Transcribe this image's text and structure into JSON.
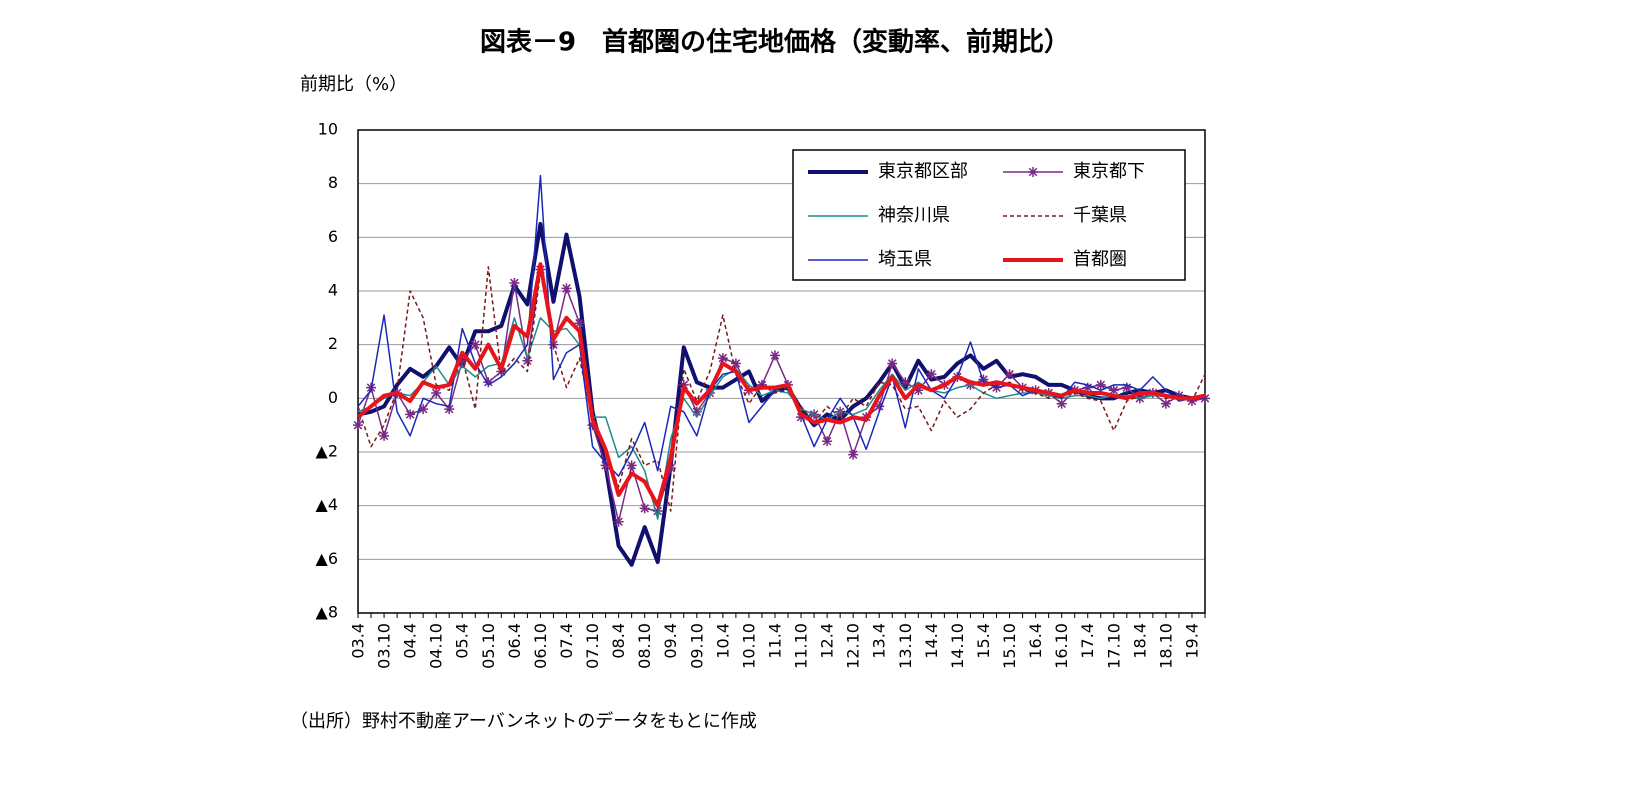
{
  "chart_data": {
    "type": "line",
    "title": "図表－9　首都圏の住宅地価格（変動率、前期比）",
    "y_label": "前期比（%）",
    "source": "（出所）野村不動産アーバンネットのデータをもとに作成",
    "categories": [
      "03.4",
      null,
      "03.10",
      null,
      "04.4",
      null,
      "04.10",
      null,
      "05.4",
      null,
      "05.10",
      null,
      "06.4",
      null,
      "06.10",
      null,
      "07.4",
      null,
      "07.10",
      null,
      "08.4",
      null,
      "08.10",
      null,
      "09.4",
      null,
      "09.10",
      null,
      "10.4",
      null,
      "10.10",
      null,
      "11.4",
      null,
      "11.10",
      null,
      "12.4",
      null,
      "12.10",
      null,
      "13.4",
      null,
      "13.10",
      null,
      "14.4",
      null,
      "14.10",
      null,
      "15.4",
      null,
      "15.10",
      null,
      "16.4",
      null,
      "16.10",
      null,
      "17.4",
      null,
      "17.10",
      null,
      "18.4",
      null,
      "18.10",
      null,
      "19.4",
      null
    ],
    "ylim": [
      -8,
      10
    ],
    "yticks": [
      {
        "value": -8,
        "label": "▲8"
      },
      {
        "value": -6,
        "label": "▲6"
      },
      {
        "value": -4,
        "label": "▲4"
      },
      {
        "value": -2,
        "label": "▲2"
      },
      0,
      2,
      4,
      6,
      8,
      10
    ],
    "grid": true,
    "legend": "upper right",
    "series": [
      {
        "name": "東京都区部",
        "color": "#10106e",
        "width": 4,
        "values": [
          -0.6,
          -0.5,
          -0.3,
          0.5,
          1.1,
          0.8,
          1.2,
          1.9,
          1.2,
          2.5,
          2.5,
          2.7,
          4.2,
          3.5,
          6.5,
          3.6,
          6.1,
          3.8,
          -0.5,
          -2.5,
          -5.5,
          -6.2,
          -4.8,
          -6.1,
          -2.5,
          1.9,
          0.6,
          0.4,
          0.4,
          0.7,
          1.0,
          -0.1,
          0.3,
          0.4,
          -0.4,
          -1.0,
          -0.6,
          -0.8,
          -0.3,
          0.0,
          0.6,
          1.3,
          0.4,
          1.4,
          0.7,
          0.8,
          1.3,
          1.6,
          1.1,
          1.4,
          0.8,
          0.9,
          0.8,
          0.5,
          0.5,
          0.3,
          0.1,
          0.0,
          0.0,
          0.2,
          0.3,
          0.2,
          0.3,
          0.1,
          0.0,
          0.1
        ]
      },
      {
        "name": "東京都下",
        "color": "#7a2a86",
        "width": 1.5,
        "marker": "asterisk",
        "values": [
          -1.0,
          0.4,
          -1.4,
          0.2,
          -0.6,
          -0.4,
          0.2,
          -0.4,
          1.4,
          2.0,
          0.6,
          1.0,
          4.3,
          1.4,
          4.8,
          2.0,
          4.1,
          2.8,
          -1.0,
          -2.5,
          -4.6,
          -2.5,
          -4.1,
          -4.2,
          -2.6,
          0.5,
          -0.5,
          0.2,
          1.5,
          1.3,
          0.3,
          0.5,
          1.6,
          0.5,
          -0.7,
          -0.6,
          -1.6,
          -0.5,
          -2.1,
          -0.7,
          -0.3,
          1.3,
          0.6,
          0.3,
          0.9,
          0.5,
          0.8,
          0.5,
          0.7,
          0.4,
          0.9,
          0.4,
          0.3,
          0.2,
          -0.2,
          0.3,
          0.4,
          0.5,
          0.3,
          0.4,
          0.0,
          0.2,
          -0.2,
          0.1,
          -0.1,
          0.0
        ]
      },
      {
        "name": "神奈川県",
        "color": "#1f8c8c",
        "width": 1.5,
        "values": [
          -0.5,
          -0.3,
          0.0,
          0.2,
          0.1,
          0.6,
          1.2,
          0.5,
          1.2,
          0.8,
          1.2,
          1.3,
          3.0,
          1.5,
          3.0,
          2.5,
          2.6,
          2.0,
          -0.7,
          -0.7,
          -2.2,
          -1.8,
          -2.7,
          -4.5,
          -1.5,
          0.0,
          -0.7,
          0.1,
          0.8,
          1.1,
          0.5,
          0.1,
          0.3,
          0.2,
          -0.4,
          -0.6,
          -0.8,
          -0.5,
          -0.6,
          -0.4,
          0.3,
          0.9,
          0.3,
          0.6,
          0.3,
          0.2,
          0.4,
          0.5,
          0.2,
          0.0,
          0.1,
          0.2,
          0.2,
          0.1,
          0.0,
          0.1,
          0.1,
          0.0,
          0.1,
          0.1,
          0.0,
          0.1,
          0.1,
          0.0,
          0.0,
          0.0
        ]
      },
      {
        "name": "千葉県",
        "color": "#7a1a1a",
        "width": 1.5,
        "dash": "dashed",
        "values": [
          -0.3,
          -1.8,
          -1.0,
          0.3,
          4.0,
          3.0,
          0.5,
          0.3,
          1.5,
          -0.4,
          4.9,
          0.9,
          1.5,
          1.0,
          4.7,
          2.0,
          0.4,
          1.5,
          -0.8,
          -2.0,
          -3.3,
          -1.5,
          -2.5,
          -2.3,
          -4.2,
          1.1,
          -0.1,
          1.0,
          3.1,
          0.9,
          -0.2,
          0.5,
          0.2,
          0.3,
          -0.3,
          -0.9,
          -0.3,
          -0.7,
          0.0,
          -0.3,
          0.6,
          0.5,
          -0.4,
          -0.3,
          -1.2,
          -0.1,
          -0.7,
          -0.4,
          0.2,
          0.5,
          0.6,
          0.3,
          0.2,
          0.0,
          0.1,
          0.2,
          0.0,
          -0.1,
          -1.2,
          -0.1,
          0.1,
          0.2,
          0.0,
          0.1,
          -0.1,
          0.9
        ]
      },
      {
        "name": "埼玉県",
        "color": "#1a2ab8",
        "width": 1.5,
        "values": [
          -0.3,
          0.3,
          3.1,
          -0.5,
          -1.4,
          0.0,
          -0.2,
          -0.3,
          2.6,
          1.3,
          0.5,
          0.8,
          1.3,
          2.0,
          8.3,
          0.7,
          1.7,
          2.0,
          -1.8,
          -2.4,
          -2.9,
          -2.0,
          -0.9,
          -2.7,
          -0.3,
          -0.5,
          -1.4,
          0.3,
          0.9,
          1.0,
          -0.9,
          -0.3,
          0.3,
          0.5,
          -0.6,
          -1.8,
          -0.8,
          0.0,
          -0.7,
          -1.9,
          -0.5,
          0.8,
          -1.1,
          1.1,
          0.3,
          0.0,
          0.8,
          2.1,
          0.6,
          0.4,
          0.5,
          0.1,
          0.3,
          0.2,
          0.0,
          0.6,
          0.5,
          0.3,
          0.5,
          0.5,
          0.3,
          0.8,
          0.3,
          -0.1,
          0.0,
          0.0
        ]
      },
      {
        "name": "首都圏",
        "color": "#e8141c",
        "width": 4,
        "values": [
          -0.7,
          -0.3,
          0.1,
          0.2,
          -0.1,
          0.6,
          0.4,
          0.5,
          1.7,
          1.1,
          2.0,
          1.1,
          2.7,
          2.3,
          5.0,
          2.2,
          3.0,
          2.5,
          -0.8,
          -1.9,
          -3.6,
          -2.8,
          -3.1,
          -4.0,
          -2.2,
          0.4,
          -0.2,
          0.3,
          1.3,
          1.0,
          0.3,
          0.4,
          0.4,
          0.5,
          -0.6,
          -0.9,
          -0.8,
          -0.9,
          -0.7,
          -0.8,
          0.1,
          0.8,
          0.0,
          0.5,
          0.3,
          0.5,
          0.8,
          0.6,
          0.5,
          0.6,
          0.5,
          0.4,
          0.3,
          0.2,
          0.1,
          0.3,
          0.2,
          0.2,
          0.1,
          0.0,
          0.2,
          0.2,
          0.1,
          0.0,
          0.0,
          0.1
        ]
      }
    ]
  }
}
